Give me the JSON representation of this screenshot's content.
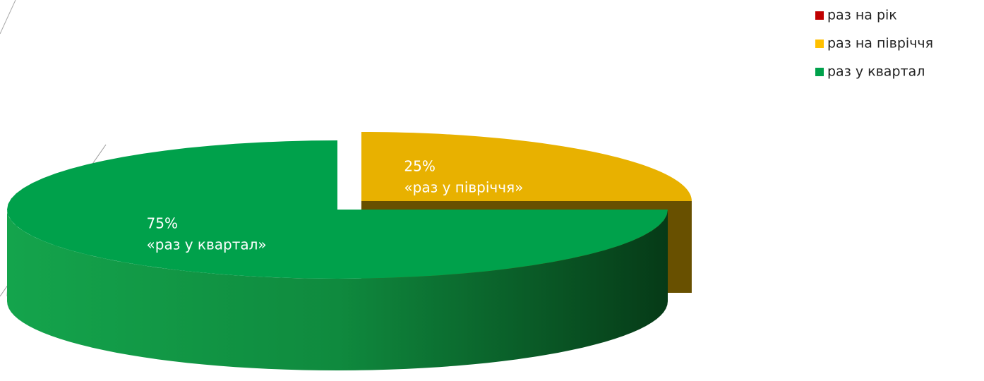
{
  "chart_data": {
    "type": "pie3d",
    "categories": [
      "раз на рік",
      "раз на півріччя",
      "раз у квартал"
    ],
    "values": [
      0,
      25,
      75
    ],
    "value_labels": [
      null,
      "25%",
      "75%"
    ],
    "slice_labels": [
      null,
      "«раз у півріччя»",
      "«раз у квартал»"
    ],
    "colors": [
      "#c00000",
      "#e8b100",
      "#00a14b"
    ],
    "legend": "top-right"
  }
}
